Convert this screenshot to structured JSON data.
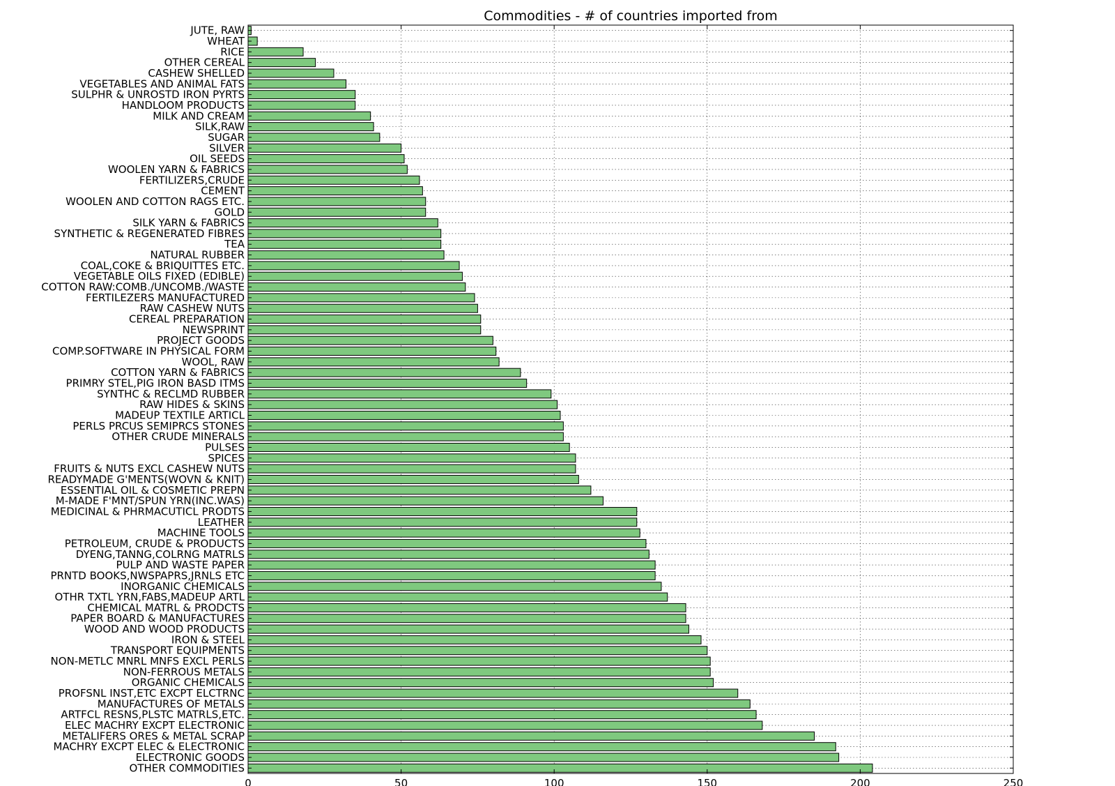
{
  "chart_data": {
    "type": "bar",
    "orientation": "horizontal",
    "title": "Commodities - # of countries imported from",
    "xlabel": "",
    "ylabel": "",
    "xlim": [
      0,
      250
    ],
    "xticks": [
      0,
      50,
      100,
      150,
      200,
      250
    ],
    "grid": true,
    "bar_color": "#7fc97f",
    "categories": [
      "JUTE, RAW",
      "WHEAT",
      "RICE",
      "OTHER CEREAL",
      "CASHEW SHELLED",
      "VEGETABLES AND ANIMAL FATS",
      "SULPHR & UNROSTD IRON PYRTS",
      "HANDLOOM PRODUCTS",
      "MILK AND CREAM",
      "SILK,RAW",
      "SUGAR",
      "SILVER",
      "OIL SEEDS",
      "WOOLEN YARN & FABRICS",
      "FERTILIZERS,CRUDE",
      "CEMENT",
      "WOOLEN AND COTTON RAGS ETC.",
      "GOLD",
      "SILK YARN & FABRICS",
      "SYNTHETIC & REGENERATED FIBRES",
      "TEA",
      "NATURAL RUBBER",
      "COAL,COKE & BRIQUITTES ETC.",
      "VEGETABLE OILS FIXED (EDIBLE)",
      "COTTON RAW:COMB./UNCOMB./WASTE",
      "FERTILEZERS MANUFACTURED",
      "RAW CASHEW NUTS",
      "CEREAL PREPARATION",
      "NEWSPRINT",
      "PROJECT GOODS",
      "COMP.SOFTWARE IN PHYSICAL FORM",
      "WOOL, RAW",
      "COTTON YARN & FABRICS",
      "PRIMRY STEL,PIG IRON BASD ITMS",
      "SYNTHC & RECLMD RUBBER",
      "RAW HIDES & SKINS",
      "MADEUP TEXTILE ARTICL",
      "PERLS PRCUS SEMIPRCS STONES",
      "OTHER CRUDE MINERALS",
      "PULSES",
      "SPICES",
      "FRUITS & NUTS EXCL CASHEW NUTS",
      "READYMADE G'MENTS(WOVN & KNIT)",
      "ESSENTIAL OIL & COSMETIC PREPN",
      "M-MADE F'MNT/SPUN YRN(INC.WAS)",
      "MEDICINAL & PHRMACUTICL PRODTS",
      "LEATHER",
      "MACHINE TOOLS",
      "PETROLEUM, CRUDE & PRODUCTS",
      "DYENG,TANNG,COLRNG MATRLS",
      "PULP AND WASTE PAPER",
      "PRNTD BOOKS,NWSPAPRS,JRNLS ETC",
      "INORGANIC CHEMICALS",
      "OTHR TXTL YRN,FABS,MADEUP ARTL",
      "CHEMICAL MATRL & PRODCTS",
      "PAPER BOARD & MANUFACTURES",
      "WOOD AND WOOD PRODUCTS",
      "IRON & STEEL",
      "TRANSPORT EQUIPMENTS",
      "NON-METLC MNRL MNFS EXCL PERLS",
      "NON-FERROUS METALS",
      "ORGANIC CHEMICALS",
      "PROFSNL INST,ETC EXCPT ELCTRNC",
      "MANUFACTURES OF METALS",
      "ARTFCL RESNS,PLSTC MATRLS,ETC.",
      "ELEC MACHRY EXCPT ELECTRONIC",
      "METALIFERS ORES & METAL SCRAP",
      "MACHRY EXCPT ELEC & ELECTRONIC",
      "ELECTRONIC GOODS",
      "OTHER COMMODITIES"
    ],
    "values": [
      1,
      3,
      18,
      22,
      28,
      32,
      35,
      35,
      40,
      41,
      43,
      50,
      51,
      52,
      56,
      57,
      58,
      58,
      62,
      63,
      63,
      64,
      69,
      70,
      71,
      74,
      75,
      76,
      76,
      80,
      81,
      82,
      89,
      91,
      99,
      101,
      102,
      103,
      103,
      105,
      107,
      107,
      108,
      112,
      116,
      127,
      127,
      128,
      130,
      131,
      133,
      133,
      135,
      137,
      143,
      143,
      144,
      148,
      150,
      151,
      151,
      152,
      160,
      164,
      166,
      168,
      185,
      192,
      193,
      204
    ]
  }
}
